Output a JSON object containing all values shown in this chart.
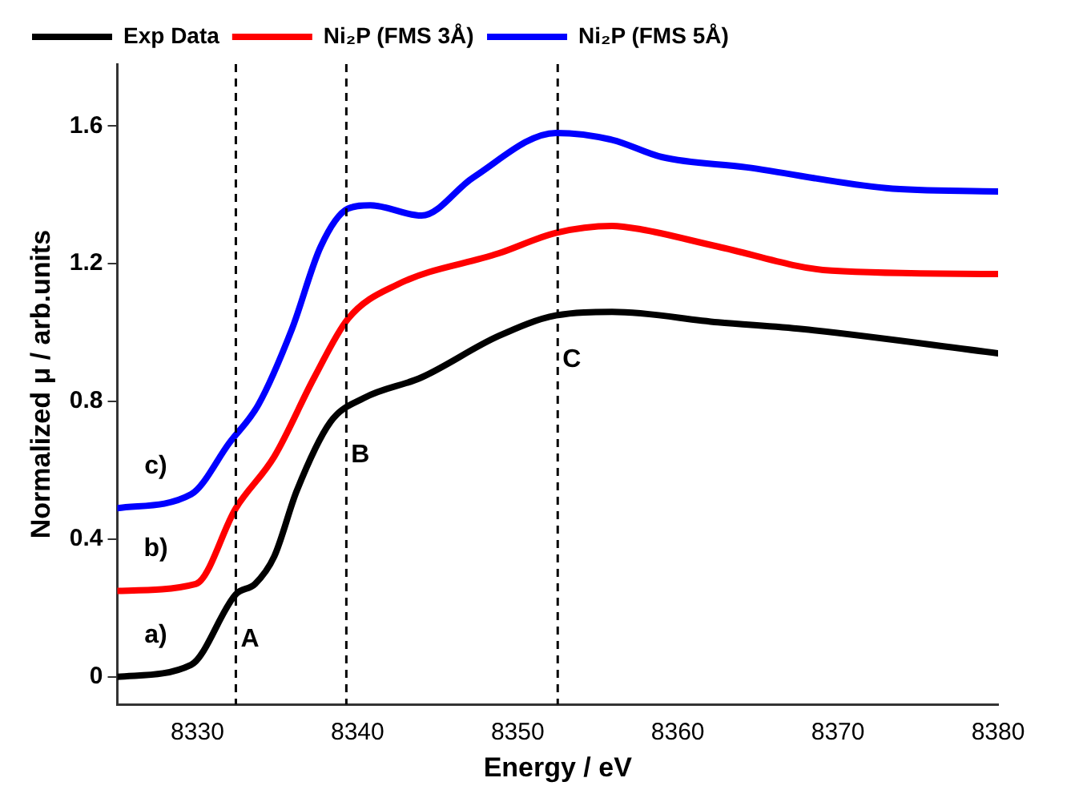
{
  "chart_data": {
    "type": "line",
    "xlabel": "Energy / eV",
    "ylabel": "Normalized μ / arb.units",
    "xlim": [
      8325,
      8380
    ],
    "xticks": [
      8330,
      8340,
      8350,
      8360,
      8370,
      8380
    ],
    "ylim": [
      -0.08,
      1.78
    ],
    "yticks": [
      0,
      0.4,
      0.8,
      1.2,
      1.6
    ],
    "grid": false,
    "legend": "top",
    "line_style": "solid",
    "marker": "none",
    "series": [
      {
        "name": "Exp Data",
        "color": "#000000",
        "x": [
          8325,
          8329.6,
          8332.4,
          8333.6,
          8334.8,
          8336.2,
          8338.3,
          8340.4,
          8344,
          8348.8,
          8352.4,
          8355.9,
          8362.5,
          8367.8,
          8380
        ],
        "values": [
          0,
          0.035,
          0.24,
          0.27,
          0.35,
          0.54,
          0.74,
          0.81,
          0.87,
          0.99,
          1.05,
          1.06,
          1.03,
          1.01,
          0.94
        ]
      },
      {
        "name": "Ni₂P (FMS 3Å)",
        "color": "#ff0000",
        "x": [
          8325,
          8329.9,
          8332.4,
          8334.8,
          8337.3,
          8339.4,
          8342.5,
          8348.8,
          8352.4,
          8355.9,
          8357.7,
          8362.5,
          8369.6,
          8380
        ],
        "values": [
          0.25,
          0.27,
          0.49,
          0.64,
          0.87,
          1.04,
          1.14,
          1.23,
          1.29,
          1.31,
          1.3,
          1.25,
          1.18,
          1.17
        ]
      },
      {
        "name": "Ni₂P (FMS 5Å)",
        "color": "#0000ff",
        "x": [
          8325,
          8329.6,
          8332,
          8333.8,
          8335.9,
          8337.7,
          8339.4,
          8340.8,
          8344,
          8347.2,
          8352.4,
          8355.9,
          8359,
          8364.3,
          8373,
          8380
        ],
        "values": [
          0.49,
          0.53,
          0.68,
          0.79,
          1.01,
          1.25,
          1.36,
          1.37,
          1.34,
          1.45,
          1.58,
          1.56,
          1.51,
          1.48,
          1.42,
          1.41
        ]
      }
    ],
    "ref_lines": [
      {
        "axis": "x",
        "value": 8332.4,
        "label": "A",
        "color": "#000000",
        "line_style": "dashed"
      },
      {
        "axis": "x",
        "value": 8339.3,
        "label": "B",
        "color": "#000000",
        "line_style": "dashed"
      },
      {
        "axis": "x",
        "value": 8352.5,
        "label": "C",
        "color": "#000000",
        "line_style": "dashed"
      }
    ],
    "annotations": [
      "a)",
      "b)",
      "c)"
    ]
  }
}
